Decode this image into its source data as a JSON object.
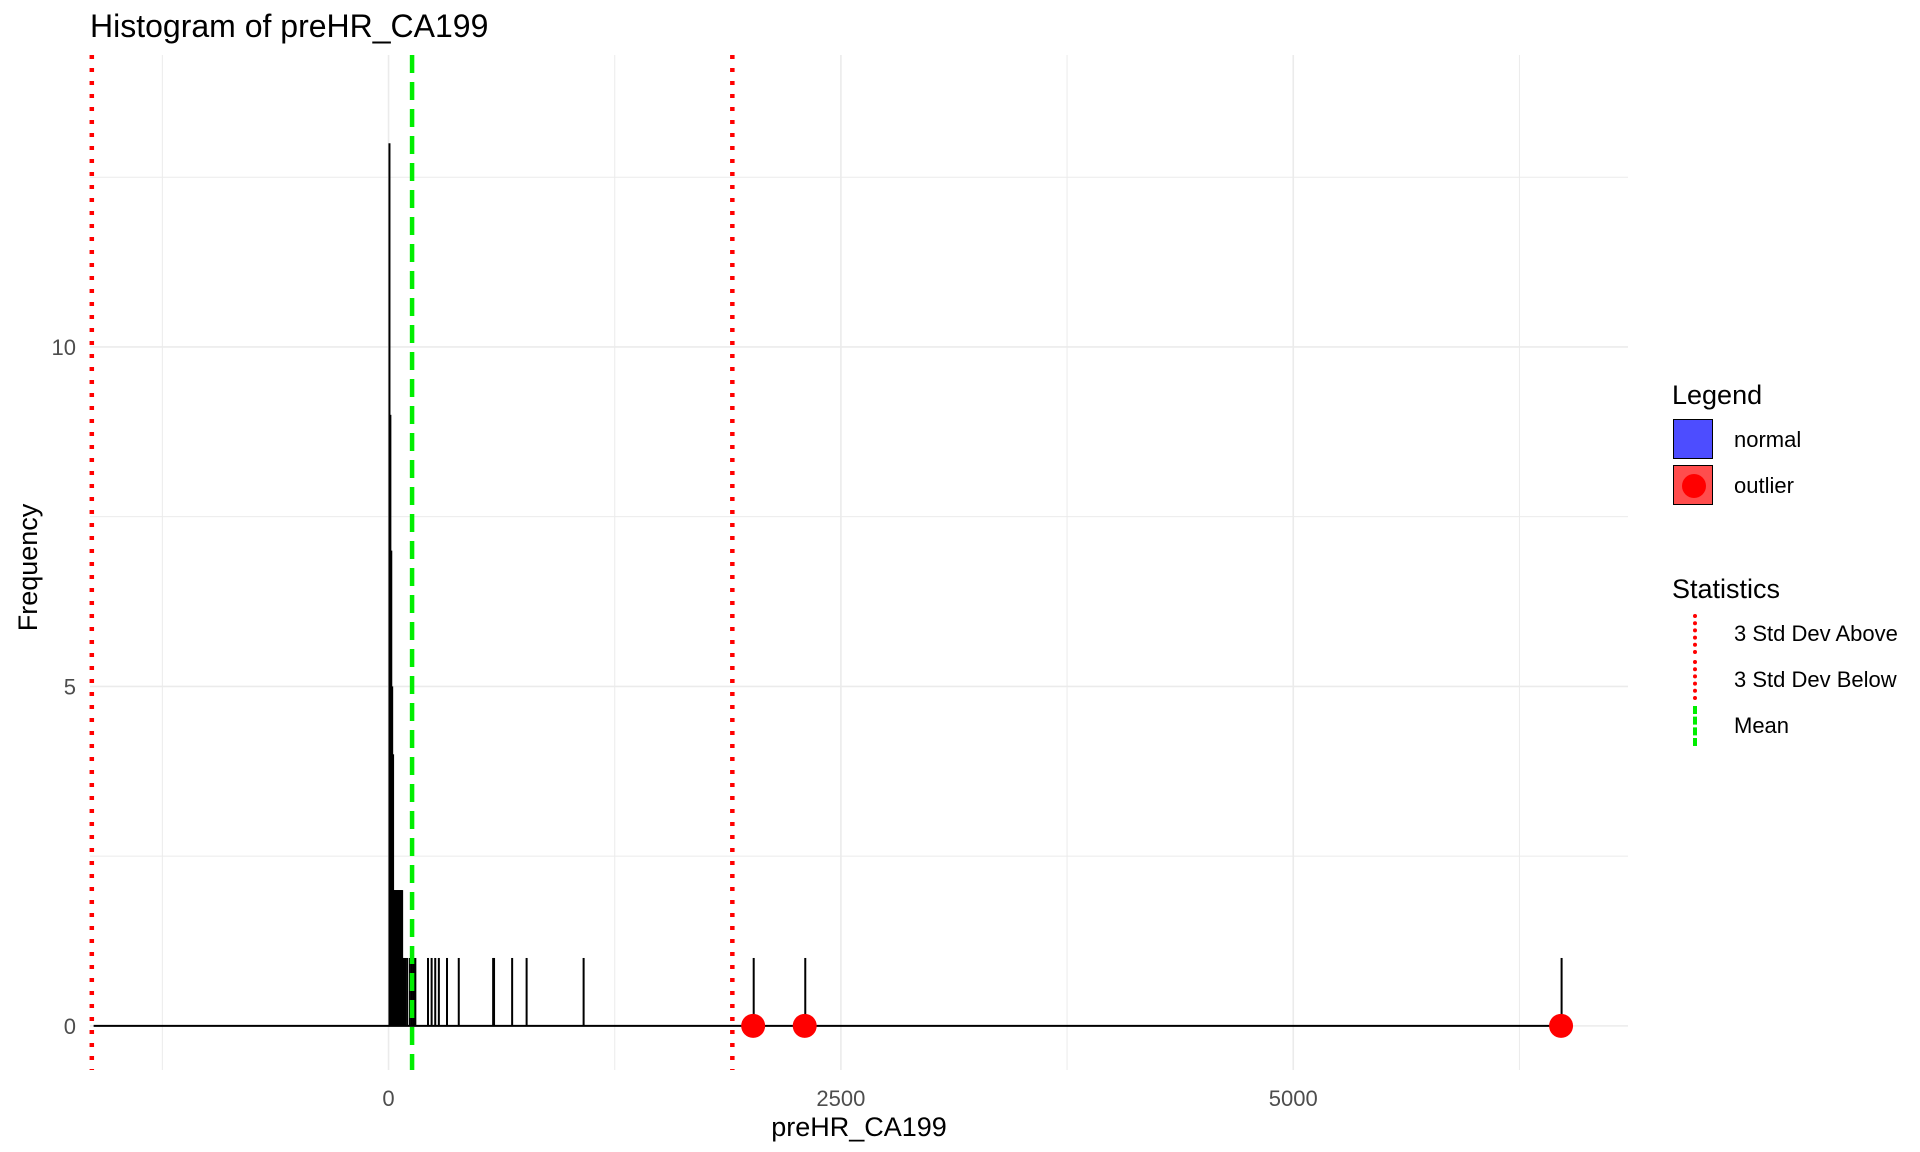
{
  "chart_data": {
    "type": "bar",
    "title": "Histogram of preHR_CA199",
    "xlabel": "preHR_CA199",
    "ylabel": "Frequency",
    "xlim": [
      -1650,
      6850
    ],
    "ylim": [
      -0.65,
      14.3
    ],
    "x_ticks": [
      0,
      2500,
      5000
    ],
    "x_minor_ticks": [
      -1250,
      1250,
      3750,
      6250
    ],
    "y_ticks": [
      0,
      5,
      10
    ],
    "y_minor_ticks": [
      2.5,
      7.5,
      12.5
    ],
    "grid": true,
    "bin_width": 5,
    "baseline_range": [
      -1630,
      6480
    ],
    "bins": [
      {
        "x": 2,
        "count": 13
      },
      {
        "x": 7,
        "count": 9
      },
      {
        "x": 12,
        "count": 7
      },
      {
        "x": 17,
        "count": 5
      },
      {
        "x": 22,
        "count": 4
      },
      {
        "x": 27,
        "count": 2
      },
      {
        "x": 32,
        "count": 2
      },
      {
        "x": 37,
        "count": 2
      },
      {
        "x": 42,
        "count": 2
      },
      {
        "x": 47,
        "count": 2
      },
      {
        "x": 52,
        "count": 2
      },
      {
        "x": 57,
        "count": 2
      },
      {
        "x": 62,
        "count": 2
      },
      {
        "x": 67,
        "count": 2
      },
      {
        "x": 72,
        "count": 2
      },
      {
        "x": 77,
        "count": 1
      },
      {
        "x": 82,
        "count": 1
      },
      {
        "x": 90,
        "count": 1
      },
      {
        "x": 100,
        "count": 1
      },
      {
        "x": 115,
        "count": 1
      },
      {
        "x": 125,
        "count": 1
      },
      {
        "x": 135,
        "count": 1
      },
      {
        "x": 145,
        "count": 1
      },
      {
        "x": 215,
        "count": 1
      },
      {
        "x": 235,
        "count": 1
      },
      {
        "x": 255,
        "count": 1
      },
      {
        "x": 275,
        "count": 1
      },
      {
        "x": 320,
        "count": 1
      },
      {
        "x": 385,
        "count": 1
      },
      {
        "x": 575,
        "count": 1
      },
      {
        "x": 580,
        "count": 1
      },
      {
        "x": 680,
        "count": 1
      },
      {
        "x": 760,
        "count": 1
      },
      {
        "x": 1075,
        "count": 1
      },
      {
        "x": 2015,
        "count": 1
      },
      {
        "x": 2300,
        "count": 1
      },
      {
        "x": 6480,
        "count": 1
      }
    ],
    "outliers": [
      2015,
      2300,
      6480
    ],
    "reference_lines": {
      "mean": 130,
      "three_sd_above": 1900,
      "three_sd_below": -1640
    },
    "legend": {
      "title": "Legend",
      "items": [
        {
          "label": "normal",
          "color": "#4d4dff",
          "key": "box"
        },
        {
          "label": "outlier",
          "color": "#ff4d4d",
          "point_color": "#ff0000",
          "key": "box-dot"
        }
      ]
    },
    "statistics_legend": {
      "title": "Statistics",
      "items": [
        {
          "label": "3 Std Dev Above",
          "color": "#ff0000",
          "style": "dotted"
        },
        {
          "label": "3 Std Dev Below",
          "color": "#ff0000",
          "style": "dotted"
        },
        {
          "label": "Mean",
          "color": "#00ee00",
          "style": "dashed"
        }
      ]
    },
    "colors": {
      "grid": "#ebebeb",
      "bar": "#000000",
      "outlier_point": "#ff0000",
      "sd_line": "#ff0000",
      "mean_line": "#00ee00",
      "axis_text": "#4d4d4d"
    }
  }
}
